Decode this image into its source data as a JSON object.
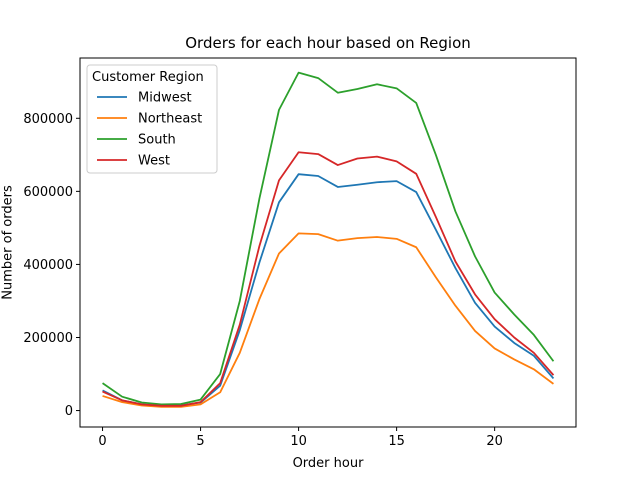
{
  "chart_data": {
    "type": "line",
    "title": "Orders for each hour based on Region",
    "xlabel": "Order hour",
    "ylabel": "Number of orders",
    "xlim": [
      -1.15,
      24.15
    ],
    "ylim": [
      -45000,
      965000
    ],
    "xticks": [
      0,
      5,
      10,
      15,
      20
    ],
    "yticks": [
      0,
      200000,
      400000,
      600000,
      800000
    ],
    "grid": false,
    "legend": {
      "title": "Customer Region",
      "placement": "top-left"
    },
    "x": [
      0,
      1,
      2,
      3,
      4,
      5,
      6,
      7,
      8,
      9,
      10,
      11,
      12,
      13,
      14,
      15,
      16,
      17,
      18,
      19,
      20,
      21,
      22,
      23
    ],
    "series": [
      {
        "name": "Midwest",
        "color": "#1f77b4",
        "values": [
          55000,
          28000,
          17000,
          13000,
          14000,
          22000,
          68000,
          220000,
          405000,
          570000,
          647000,
          642000,
          612000,
          618000,
          625000,
          628000,
          598000,
          495000,
          390000,
          295000,
          230000,
          185000,
          150000,
          88000
        ]
      },
      {
        "name": "Northeast",
        "color": "#ff7f0e",
        "values": [
          40000,
          23000,
          14000,
          10000,
          10000,
          17000,
          50000,
          158000,
          305000,
          430000,
          485000,
          483000,
          465000,
          472000,
          475000,
          470000,
          447000,
          365000,
          287000,
          218000,
          170000,
          140000,
          113000,
          73000
        ]
      },
      {
        "name": "South",
        "color": "#2ca02c",
        "values": [
          75000,
          38000,
          22000,
          17000,
          18000,
          30000,
          100000,
          300000,
          580000,
          823000,
          925000,
          910000,
          870000,
          880000,
          893000,
          882000,
          842000,
          700000,
          545000,
          422000,
          323000,
          263000,
          207000,
          135000
        ]
      },
      {
        "name": "West",
        "color": "#d62728",
        "values": [
          52000,
          28000,
          17000,
          13000,
          13000,
          23000,
          75000,
          235000,
          450000,
          630000,
          707000,
          702000,
          672000,
          690000,
          695000,
          682000,
          648000,
          530000,
          408000,
          318000,
          250000,
          200000,
          158000,
          97000
        ]
      }
    ]
  }
}
